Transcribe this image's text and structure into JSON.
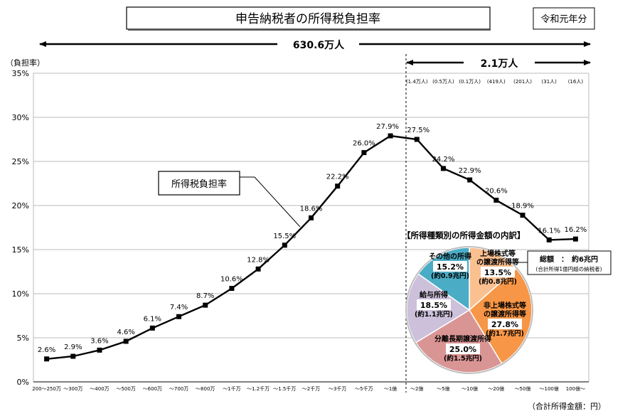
{
  "header": {
    "title": "申告納税者の所得税負担率",
    "year_badge": "令和元年分",
    "total_taxpayers": "630.6万人",
    "high_income_taxpayers": "2.1万人"
  },
  "colors": {
    "line": "#000000",
    "pie_other": "#4bacc6",
    "pie_listed_stock": "#fac090",
    "pie_unlisted_stock": "#f79646",
    "pie_separate_long_term": "#d99594",
    "pie_salary": "#ccc0da"
  },
  "chart_data": [
    {
      "type": "line",
      "title": "",
      "ylabel": "（負担率）",
      "xlabel": "（合計所得金額：円）",
      "yticks": [
        "0%",
        "5%",
        "10%",
        "15%",
        "20%",
        "25%",
        "30%",
        "35%"
      ],
      "ylim": [
        0,
        35
      ],
      "grid": true,
      "categories": [
        "200～250万",
        "～300万",
        "～400万",
        "～500万",
        "～600万",
        "～700万",
        "～800万",
        "～1千万",
        "～1.2千万",
        "～1.5千万",
        "～2千万",
        "～3千万",
        "～5千万",
        "～1億",
        "～2億",
        "～5億",
        "～10億",
        "～20億",
        "～50億",
        "～100億",
        "100億～"
      ],
      "series": [
        {
          "name": "所得税負担率",
          "values": [
            2.6,
            2.9,
            3.6,
            4.6,
            6.1,
            7.4,
            8.7,
            10.6,
            12.8,
            15.5,
            18.6,
            22.2,
            26.0,
            27.9,
            27.5,
            24.2,
            22.9,
            20.6,
            18.9,
            16.1,
            16.2
          ],
          "labels": [
            "2.6%",
            "2.9%",
            "3.6%",
            "4.6%",
            "6.1%",
            "7.4%",
            "8.7%",
            "10.6%",
            "12.8%",
            "15.5%",
            "18.6%",
            "22.2%",
            "26.0%",
            "27.9%",
            "27.5%",
            "24.2%",
            "22.9%",
            "20.6%",
            "18.9%",
            "16.1%",
            "16.2%"
          ]
        }
      ],
      "counts_over_1oku": [
        "(1.4万人)",
        "(0.5万人)",
        "(0.1万人)",
        "(419人)",
        "(201人)",
        "(31人)",
        "(16人)"
      ]
    },
    {
      "type": "pie",
      "title": "【所得種類別の所得金額の内訳】",
      "total_label": "総額　：　約6兆円",
      "total_note": "(合計所得1億円超の納税者)",
      "slices": [
        {
          "name": "上場株式等の譲渡所得等",
          "value": 13.5,
          "percent": "13.5%",
          "amount": "(約0.8兆円)"
        },
        {
          "name": "非上場株式等の譲渡所得等",
          "value": 27.8,
          "percent": "27.8%",
          "amount": "(約1.7兆円)"
        },
        {
          "name": "分離長期譲渡所得",
          "value": 25.0,
          "percent": "25.0%",
          "amount": "(約1.5兆円)"
        },
        {
          "name": "給与所得",
          "value": 18.5,
          "percent": "18.5%",
          "amount": "(約1.1兆円)"
        },
        {
          "name": "その他の所得",
          "value": 15.2,
          "percent": "15.2%",
          "amount": "(約0.9兆円)"
        }
      ]
    }
  ]
}
